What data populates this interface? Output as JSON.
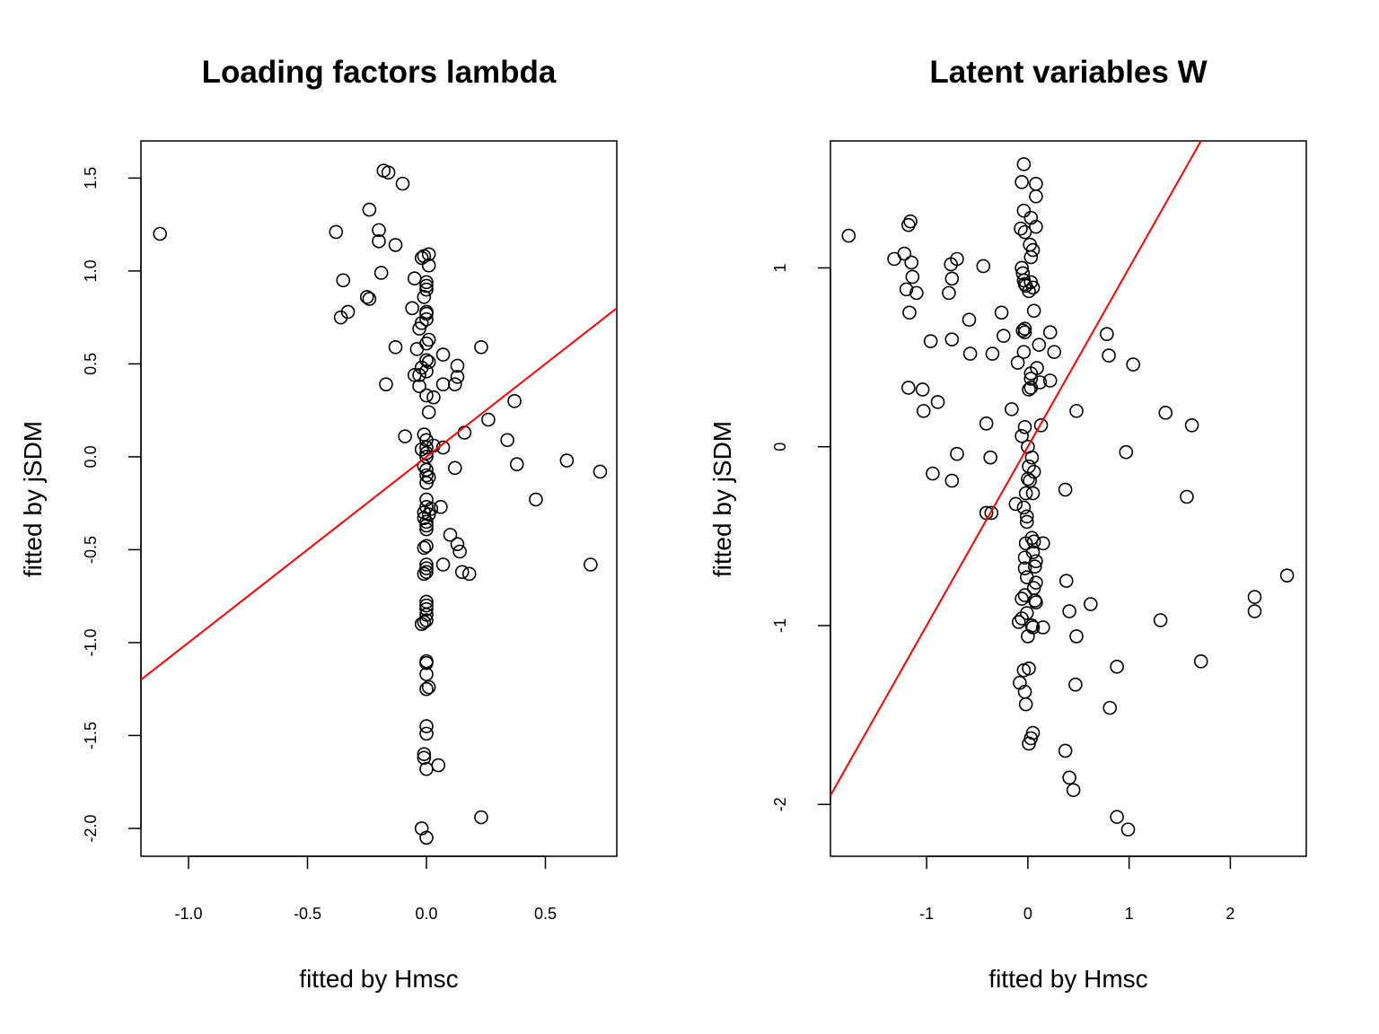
{
  "colors": {
    "points": "#000000",
    "line": "#ff0000",
    "axes": "#000000",
    "background": "#ffffff"
  },
  "chart_data": [
    {
      "type": "scatter",
      "title": "Loading factors lambda",
      "xlabel": "fitted by Hmsc",
      "ylabel": "fitted by jSDM",
      "xlim": [
        -1.2,
        0.8
      ],
      "ylim": [
        -2.15,
        1.7
      ],
      "xticks": [
        -1.0,
        -0.5,
        0.0,
        0.5
      ],
      "xtick_labels": [
        "-1.0",
        "-0.5",
        "0.0",
        "0.5"
      ],
      "yticks": [
        -2.0,
        -1.5,
        -1.0,
        -0.5,
        0.0,
        0.5,
        1.0,
        1.5
      ],
      "ytick_labels": [
        "-2.0",
        "-1.5",
        "-1.0",
        "-0.5",
        "0.0",
        "0.5",
        "1.0",
        "1.5"
      ],
      "grid": false,
      "reference_line": {
        "slope": 1,
        "intercept": 0
      },
      "points": [
        [
          -1.12,
          1.2
        ],
        [
          -0.38,
          1.21
        ],
        [
          -0.35,
          0.95
        ],
        [
          -0.36,
          0.75
        ],
        [
          -0.33,
          0.78
        ],
        [
          -0.24,
          1.33
        ],
        [
          -0.25,
          0.86
        ],
        [
          -0.24,
          0.85
        ],
        [
          -0.2,
          1.22
        ],
        [
          -0.2,
          1.16
        ],
        [
          -0.19,
          0.99
        ],
        [
          -0.18,
          1.54
        ],
        [
          -0.16,
          1.53
        ],
        [
          -0.13,
          1.14
        ],
        [
          -0.1,
          1.47
        ],
        [
          -0.13,
          0.59
        ],
        [
          -0.17,
          0.39
        ],
        [
          -0.06,
          0.8
        ],
        [
          -0.05,
          0.96
        ],
        [
          -0.05,
          0.44
        ],
        [
          -0.04,
          0.58
        ],
        [
          -0.03,
          0.69
        ],
        [
          -0.03,
          0.38
        ],
        [
          -0.02,
          0.72
        ],
        [
          -0.02,
          0.48
        ],
        [
          -0.03,
          0.44
        ],
        [
          -0.09,
          0.11
        ],
        [
          -0.02,
          1.07
        ],
        [
          -0.01,
          1.08
        ],
        [
          0.01,
          1.09
        ],
        [
          0.01,
          1.03
        ],
        [
          0.0,
          0.94
        ],
        [
          0.0,
          0.92
        ],
        [
          0.0,
          0.9
        ],
        [
          -0.01,
          0.86
        ],
        [
          0.0,
          0.78
        ],
        [
          0.0,
          0.77
        ],
        [
          0.0,
          0.74
        ],
        [
          0.01,
          0.63
        ],
        [
          0.0,
          0.61
        ],
        [
          0.0,
          0.52
        ],
        [
          0.01,
          0.51
        ],
        [
          0.0,
          0.46
        ],
        [
          0.0,
          0.33
        ],
        [
          0.01,
          0.24
        ],
        [
          0.03,
          0.32
        ],
        [
          0.07,
          0.55
        ],
        [
          0.07,
          0.39
        ],
        [
          0.13,
          0.49
        ],
        [
          0.13,
          0.43
        ],
        [
          0.12,
          0.39
        ],
        [
          0.23,
          0.59
        ],
        [
          0.37,
          0.3
        ],
        [
          0.26,
          0.2
        ],
        [
          0.16,
          0.13
        ],
        [
          0.34,
          0.09
        ],
        [
          0.07,
          0.05
        ],
        [
          0.03,
          0.06
        ],
        [
          -0.01,
          0.12
        ],
        [
          0.0,
          0.09
        ],
        [
          -0.02,
          0.04
        ],
        [
          0.0,
          0.05
        ],
        [
          0.0,
          0.02
        ],
        [
          0.0,
          0.0
        ],
        [
          -0.01,
          -0.05
        ],
        [
          0.0,
          -0.07
        ],
        [
          0.0,
          -0.1
        ],
        [
          0.01,
          -0.11
        ],
        [
          0.0,
          -0.14
        ],
        [
          0.12,
          -0.06
        ],
        [
          0.38,
          -0.04
        ],
        [
          0.59,
          -0.02
        ],
        [
          0.73,
          -0.08
        ],
        [
          0.46,
          -0.23
        ],
        [
          0.0,
          -0.23
        ],
        [
          0.0,
          -0.27
        ],
        [
          -0.01,
          -0.3
        ],
        [
          0.01,
          -0.31
        ],
        [
          -0.01,
          -0.33
        ],
        [
          0.0,
          -0.35
        ],
        [
          0.0,
          -0.37
        ],
        [
          0.0,
          -0.39
        ],
        [
          0.06,
          -0.27
        ],
        [
          0.02,
          -0.28
        ],
        [
          0.1,
          -0.42
        ],
        [
          0.13,
          -0.47
        ],
        [
          0.14,
          -0.51
        ],
        [
          0.0,
          -0.48
        ],
        [
          -0.01,
          -0.49
        ],
        [
          0.07,
          -0.58
        ],
        [
          0.0,
          -0.58
        ],
        [
          0.0,
          -0.6
        ],
        [
          0.0,
          -0.62
        ],
        [
          -0.01,
          -0.63
        ],
        [
          0.15,
          -0.62
        ],
        [
          0.18,
          -0.63
        ],
        [
          0.69,
          -0.58
        ],
        [
          0.0,
          -0.78
        ],
        [
          0.0,
          -0.8
        ],
        [
          0.0,
          -0.82
        ],
        [
          0.0,
          -0.85
        ],
        [
          0.0,
          -0.88
        ],
        [
          -0.01,
          -0.89
        ],
        [
          -0.02,
          -0.9
        ],
        [
          0.0,
          -1.1
        ],
        [
          0.0,
          -1.11
        ],
        [
          0.0,
          -1.17
        ],
        [
          0.01,
          -1.24
        ],
        [
          0.0,
          -1.25
        ],
        [
          0.0,
          -1.45
        ],
        [
          0.0,
          -1.49
        ],
        [
          -0.01,
          -1.6
        ],
        [
          -0.01,
          -1.62
        ],
        [
          0.0,
          -1.68
        ],
        [
          0.05,
          -1.66
        ],
        [
          0.23,
          -1.94
        ],
        [
          -0.02,
          -2.0
        ],
        [
          0.0,
          -2.05
        ]
      ]
    },
    {
      "type": "scatter",
      "title": "Latent variables W",
      "xlabel": "fitted by Hmsc",
      "ylabel": "fitted by jSDM",
      "xlim": [
        -1.95,
        2.75
      ],
      "ylim": [
        -2.29,
        1.71
      ],
      "xticks": [
        -1,
        0,
        1,
        2
      ],
      "xtick_labels": [
        "-1",
        "0",
        "1",
        "2"
      ],
      "yticks": [
        -2,
        -1,
        0,
        1
      ],
      "ytick_labels": [
        "-2",
        "-1",
        "0",
        "1"
      ],
      "grid": false,
      "reference_line": {
        "slope": 1,
        "intercept": 0
      },
      "points": [
        [
          -1.77,
          1.18
        ],
        [
          -1.32,
          1.05
        ],
        [
          -1.22,
          1.08
        ],
        [
          -1.18,
          1.24
        ],
        [
          -1.16,
          1.26
        ],
        [
          -1.15,
          1.03
        ],
        [
          -1.2,
          0.88
        ],
        [
          -1.1,
          0.86
        ],
        [
          -1.14,
          0.95
        ],
        [
          -1.17,
          0.75
        ],
        [
          -0.76,
          1.02
        ],
        [
          -0.7,
          1.05
        ],
        [
          -0.75,
          0.94
        ],
        [
          -0.78,
          0.86
        ],
        [
          -0.44,
          1.01
        ],
        [
          -0.58,
          0.71
        ],
        [
          -0.26,
          0.75
        ],
        [
          -0.24,
          0.62
        ],
        [
          -0.96,
          0.59
        ],
        [
          -0.75,
          0.6
        ],
        [
          -0.57,
          0.52
        ],
        [
          -0.35,
          0.52
        ],
        [
          -1.18,
          0.33
        ],
        [
          -1.04,
          0.32
        ],
        [
          -0.89,
          0.25
        ],
        [
          -1.03,
          0.2
        ],
        [
          -0.41,
          0.13
        ],
        [
          -0.7,
          -0.04
        ],
        [
          -0.37,
          -0.06
        ],
        [
          -0.94,
          -0.15
        ],
        [
          -0.75,
          -0.19
        ],
        [
          -0.41,
          -0.37
        ],
        [
          -0.36,
          -0.37
        ],
        [
          -0.12,
          -0.32
        ],
        [
          -0.16,
          0.21
        ],
        [
          -0.04,
          1.58
        ],
        [
          -0.06,
          1.48
        ],
        [
          0.08,
          1.47
        ],
        [
          0.08,
          1.4
        ],
        [
          -0.04,
          1.32
        ],
        [
          0.03,
          1.28
        ],
        [
          0.08,
          1.23
        ],
        [
          -0.07,
          1.22
        ],
        [
          -0.03,
          1.2
        ],
        [
          0.02,
          1.13
        ],
        [
          0.05,
          1.1
        ],
        [
          0.03,
          1.06
        ],
        [
          -0.06,
          1.0
        ],
        [
          -0.05,
          0.97
        ],
        [
          -0.04,
          0.93
        ],
        [
          -0.03,
          0.91
        ],
        [
          -0.02,
          0.9
        ],
        [
          0.03,
          0.92
        ],
        [
          0.05,
          0.89
        ],
        [
          0.01,
          0.87
        ],
        [
          0.06,
          0.76
        ],
        [
          0.22,
          0.64
        ],
        [
          -0.03,
          0.66
        ],
        [
          -0.05,
          0.65
        ],
        [
          -0.03,
          0.64
        ],
        [
          -0.04,
          0.53
        ],
        [
          0.11,
          0.57
        ],
        [
          0.26,
          0.53
        ],
        [
          -0.1,
          0.47
        ],
        [
          0.09,
          0.44
        ],
        [
          0.03,
          0.41
        ],
        [
          0.03,
          0.38
        ],
        [
          0.01,
          0.32
        ],
        [
          0.12,
          0.36
        ],
        [
          0.22,
          0.37
        ],
        [
          0.03,
          0.33
        ],
        [
          0.78,
          0.63
        ],
        [
          0.8,
          0.51
        ],
        [
          1.04,
          0.46
        ],
        [
          0.48,
          0.2
        ],
        [
          1.36,
          0.19
        ],
        [
          1.62,
          0.12
        ],
        [
          0.13,
          0.12
        ],
        [
          -0.03,
          0.11
        ],
        [
          -0.06,
          0.06
        ],
        [
          0.0,
          0.0
        ],
        [
          0.04,
          -0.06
        ],
        [
          0.01,
          -0.11
        ],
        [
          0.06,
          -0.14
        ],
        [
          0.0,
          -0.18
        ],
        [
          0.02,
          -0.19
        ],
        [
          -0.02,
          -0.26
        ],
        [
          0.05,
          -0.26
        ],
        [
          0.37,
          -0.24
        ],
        [
          0.97,
          -0.03
        ],
        [
          1.57,
          -0.28
        ],
        [
          -0.04,
          -0.34
        ],
        [
          -0.01,
          -0.39
        ],
        [
          -0.01,
          -0.42
        ],
        [
          0.04,
          -0.51
        ],
        [
          0.06,
          -0.53
        ],
        [
          -0.02,
          -0.54
        ],
        [
          0.15,
          -0.54
        ],
        [
          0.05,
          -0.59
        ],
        [
          -0.03,
          -0.62
        ],
        [
          0.08,
          -0.64
        ],
        [
          0.07,
          -0.67
        ],
        [
          -0.03,
          -0.68
        ],
        [
          -0.01,
          -0.73
        ],
        [
          0.08,
          -0.76
        ],
        [
          0.06,
          -0.79
        ],
        [
          0.38,
          -0.75
        ],
        [
          -0.03,
          -0.83
        ],
        [
          -0.06,
          -0.85
        ],
        [
          0.07,
          -0.86
        ],
        [
          0.08,
          -0.87
        ],
        [
          0.62,
          -0.88
        ],
        [
          -0.01,
          -0.93
        ],
        [
          0.41,
          -0.92
        ],
        [
          -0.06,
          -0.96
        ],
        [
          -0.09,
          -0.98
        ],
        [
          0.04,
          -1.0
        ],
        [
          0.05,
          -1.01
        ],
        [
          0.15,
          -1.01
        ],
        [
          0.0,
          -1.06
        ],
        [
          0.48,
          -1.06
        ],
        [
          1.31,
          -0.97
        ],
        [
          2.24,
          -0.84
        ],
        [
          2.24,
          -0.92
        ],
        [
          2.56,
          -0.72
        ],
        [
          1.71,
          -1.2
        ],
        [
          0.88,
          -1.23
        ],
        [
          0.01,
          -1.24
        ],
        [
          -0.04,
          -1.25
        ],
        [
          -0.08,
          -1.32
        ],
        [
          -0.03,
          -1.37
        ],
        [
          0.47,
          -1.33
        ],
        [
          -0.02,
          -1.44
        ],
        [
          0.81,
          -1.46
        ],
        [
          0.05,
          -1.6
        ],
        [
          0.03,
          -1.63
        ],
        [
          0.01,
          -1.66
        ],
        [
          0.37,
          -1.7
        ],
        [
          0.41,
          -1.85
        ],
        [
          0.45,
          -1.92
        ],
        [
          0.88,
          -2.07
        ],
        [
          0.99,
          -2.14
        ]
      ]
    }
  ]
}
